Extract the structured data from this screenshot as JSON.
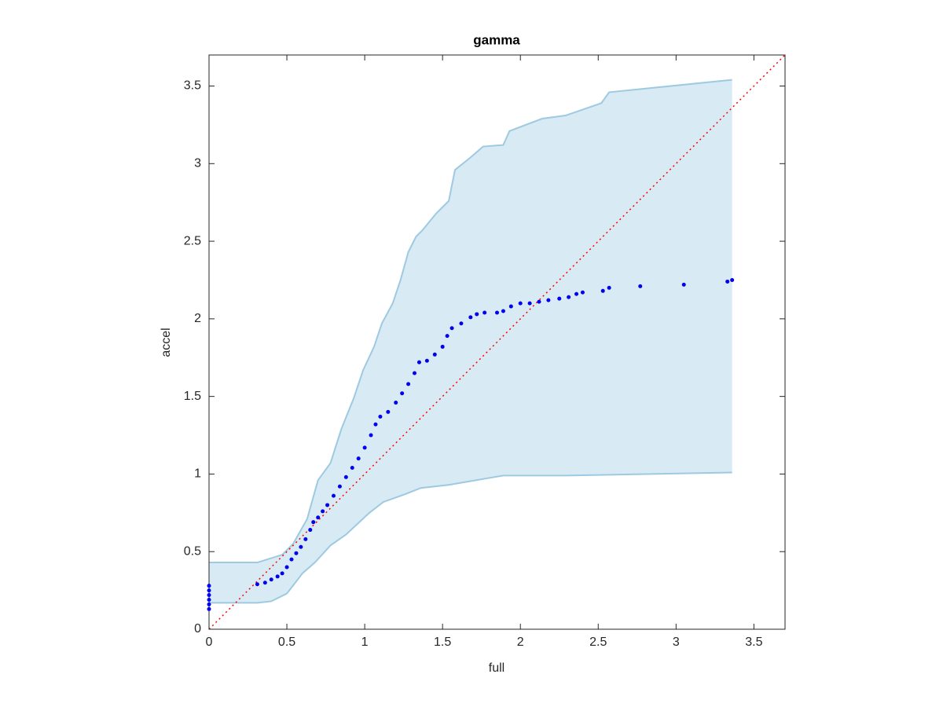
{
  "chart_data": {
    "type": "scatter",
    "title": "gamma",
    "x_label": "full",
    "y_label": "accel",
    "xlim": [
      0,
      3.7
    ],
    "ylim": [
      0,
      3.7
    ],
    "xticks": [
      0,
      0.5,
      1,
      1.5,
      2,
      2.5,
      3,
      3.5
    ],
    "yticks": [
      0,
      0.5,
      1,
      1.5,
      2,
      2.5,
      3,
      3.5
    ],
    "color": "#0000ee",
    "x": [
      0,
      0,
      0,
      0,
      0,
      0,
      0.31,
      0.36,
      0.4,
      0.44,
      0.47,
      0.5,
      0.53,
      0.56,
      0.59,
      0.62,
      0.65,
      0.67,
      0.7,
      0.73,
      0.76,
      0.8,
      0.84,
      0.88,
      0.92,
      0.96,
      1.0,
      1.04,
      1.07,
      1.1,
      1.15,
      1.2,
      1.24,
      1.28,
      1.32,
      1.35,
      1.4,
      1.45,
      1.5,
      1.53,
      1.56,
      1.62,
      1.68,
      1.72,
      1.77,
      1.85,
      1.89,
      1.94,
      2.0,
      2.06,
      2.12,
      2.18,
      2.25,
      2.31,
      2.36,
      2.4,
      2.53,
      2.57,
      2.77,
      3.05,
      3.33,
      3.36
    ],
    "values": [
      0.13,
      0.16,
      0.19,
      0.22,
      0.25,
      0.28,
      0.29,
      0.3,
      0.32,
      0.34,
      0.36,
      0.4,
      0.45,
      0.49,
      0.53,
      0.58,
      0.64,
      0.69,
      0.72,
      0.76,
      0.8,
      0.86,
      0.92,
      0.98,
      1.04,
      1.1,
      1.17,
      1.25,
      1.32,
      1.37,
      1.4,
      1.46,
      1.52,
      1.58,
      1.65,
      1.72,
      1.73,
      1.77,
      1.82,
      1.89,
      1.94,
      1.97,
      2.01,
      2.03,
      2.04,
      2.04,
      2.05,
      2.08,
      2.1,
      2.1,
      2.11,
      2.12,
      2.13,
      2.14,
      2.16,
      2.17,
      2.18,
      2.2,
      2.21,
      2.22,
      2.24,
      2.25
    ],
    "band": {
      "color": "#9ecae1",
      "upper": {
        "x": [
          0,
          0.31,
          0.47,
          0.54,
          0.63,
          0.7,
          0.78,
          0.85,
          0.93,
          0.99,
          1.06,
          1.11,
          1.18,
          1.23,
          1.28,
          1.33,
          1.37,
          1.46,
          1.54,
          1.58,
          1.68,
          1.76,
          1.89,
          1.93,
          2.14,
          2.29,
          2.52,
          2.57,
          3.36
        ],
        "y": [
          0.43,
          0.43,
          0.48,
          0.55,
          0.71,
          0.96,
          1.07,
          1.29,
          1.49,
          1.67,
          1.82,
          1.97,
          2.1,
          2.25,
          2.43,
          2.53,
          2.57,
          2.68,
          2.76,
          2.96,
          3.04,
          3.11,
          3.12,
          3.21,
          3.29,
          3.31,
          3.39,
          3.46,
          3.54
        ]
      },
      "lower": {
        "x": [
          0,
          0.31,
          0.4,
          0.5,
          0.6,
          0.68,
          0.78,
          0.88,
          1.03,
          1.12,
          1.26,
          1.36,
          1.54,
          1.89,
          2.29,
          3.36
        ],
        "y": [
          0.17,
          0.17,
          0.18,
          0.23,
          0.36,
          0.43,
          0.54,
          0.61,
          0.75,
          0.82,
          0.87,
          0.91,
          0.93,
          0.99,
          0.99,
          1.01
        ]
      }
    },
    "reference_line": {
      "x": [
        0,
        3.7
      ],
      "y": [
        0,
        3.7
      ],
      "color": "#ff0000"
    }
  }
}
